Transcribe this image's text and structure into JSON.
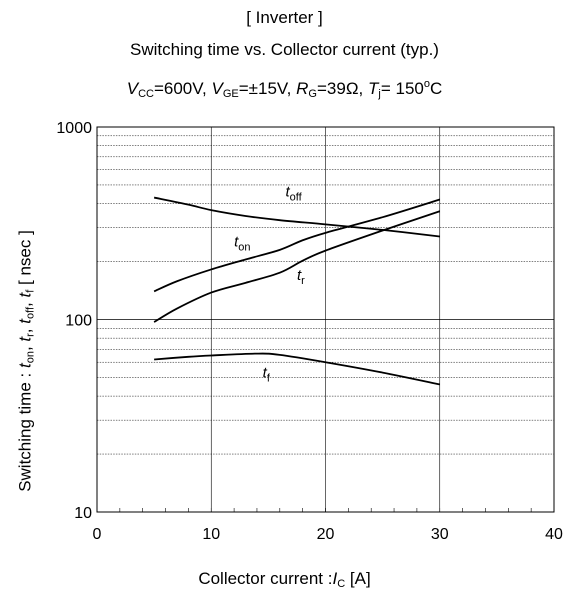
{
  "title_line1": "[ Inverter ]",
  "title_line2": "Switching time  vs.  Collector current  (typ.)",
  "conditions": {
    "vcc_sym": "V",
    "vcc_sub": "CC",
    "vcc_val": "=600V,",
    "vge_sym": "V",
    "vge_sub": "GE",
    "vge_val": "=±15V,",
    "rg_sym": "R",
    "rg_sub": "G",
    "rg_val": "=39Ω,",
    "tj_sym": "T",
    "tj_sub": "j",
    "tj_val": "= 150",
    "tj_sup": "o",
    "tj_unit": "C"
  },
  "chart_data": {
    "type": "line",
    "title": "Switching time vs. Collector current (typ.)",
    "xlabel": "Collector  current :I C [A]",
    "ylabel": "Switching time : t on, t r, t off, t f [ nsec ]",
    "xlim": [
      0,
      40
    ],
    "ylim": [
      10,
      1000
    ],
    "yscale": "log",
    "grid": true,
    "x_ticks": [
      "0",
      "10",
      "20",
      "30",
      "40"
    ],
    "y_ticks": [
      "10",
      "100",
      "1000"
    ],
    "series": [
      {
        "name": "toff",
        "label_main": "t",
        "label_sub": "off",
        "x": [
          5,
          8,
          10,
          13,
          16,
          20,
          25,
          30
        ],
        "y": [
          430,
          395,
          370,
          345,
          328,
          312,
          292,
          270
        ],
        "label_pos": [
          16.5,
          435
        ]
      },
      {
        "name": "ton",
        "label_main": "t",
        "label_sub": "on",
        "x": [
          5,
          7,
          10,
          13,
          16,
          18,
          20,
          25,
          30
        ],
        "y": [
          140,
          158,
          182,
          205,
          230,
          258,
          282,
          340,
          420
        ],
        "label_pos": [
          12,
          240
        ]
      },
      {
        "name": "tr",
        "label_main": "t",
        "label_sub": "r",
        "x": [
          5,
          7,
          10,
          13,
          16,
          18,
          20,
          25,
          30
        ],
        "y": [
          97,
          114,
          138,
          155,
          175,
          202,
          228,
          290,
          365
        ],
        "label_pos": [
          17.5,
          160
        ]
      },
      {
        "name": "tf",
        "label_main": "t",
        "label_sub": "f",
        "x": [
          5,
          8,
          10,
          14,
          16,
          20,
          25,
          30
        ],
        "y": [
          62,
          64,
          65,
          66.5,
          65.5,
          60,
          53,
          46
        ],
        "label_pos": [
          14.5,
          50
        ]
      }
    ]
  },
  "xlabel": {
    "text": "Collector  current :",
    "sym": "I",
    "sub": "C",
    "unit": " [A]"
  },
  "ylabel": {
    "pre": "Switching time  :  ",
    "t1": "t",
    "s1": "on",
    "c1": ", ",
    "t2": "t",
    "s2": "r",
    "c2": ", ",
    "t3": "t",
    "s3": "off",
    "c3": ", ",
    "t4": "t",
    "s4": "f",
    "unit": "  [ nsec ]"
  }
}
